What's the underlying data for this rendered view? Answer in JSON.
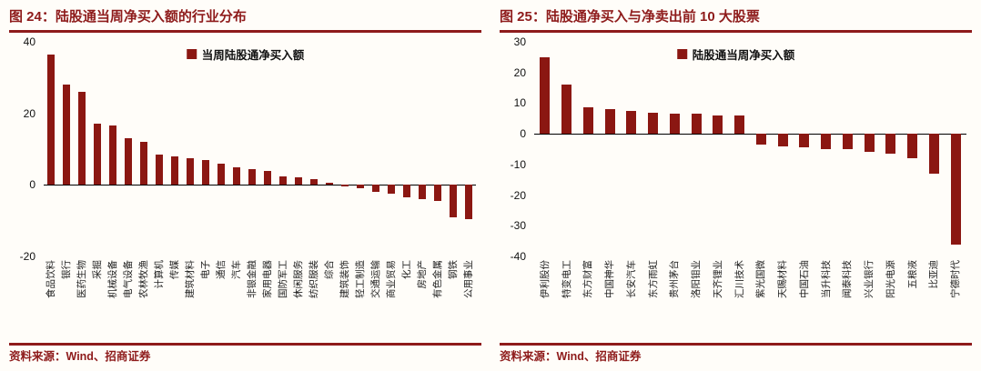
{
  "colors": {
    "accent": "#8E1B1B",
    "bar": "#8B1712",
    "background": "#FFFDF9",
    "zero_line": "#000000"
  },
  "chart_data": [
    {
      "type": "bar",
      "title": "图 24：陆股通当周净买入额的行业分布",
      "legend": [
        "当周陆股通净买入额"
      ],
      "legend_position": "top-center",
      "grid": false,
      "ylim": [
        -20,
        40
      ],
      "yticks": [
        40,
        20,
        0,
        -20
      ],
      "bar_color": "#8B1712",
      "categories": [
        "食品饮料",
        "银行",
        "医药生物",
        "采掘",
        "机械设备",
        "电气设备",
        "农林牧渔",
        "计算机",
        "传媒",
        "建筑材料",
        "电子",
        "通信",
        "汽车",
        "非银金融",
        "家用电器",
        "国防军工",
        "休闲服务",
        "纺织服装",
        "综合",
        "建筑装饰",
        "轻工制造",
        "交通运输",
        "商业贸易",
        "化工",
        "房地产",
        "有色金属",
        "钢铁",
        "公用事业"
      ],
      "values": [
        36.5,
        28,
        26,
        17,
        16.5,
        13,
        12,
        8.5,
        8,
        7.5,
        7,
        6,
        5,
        4.5,
        4,
        2.5,
        2,
        1.5,
        0.5,
        -0.5,
        -1,
        -2,
        -2.5,
        -3.5,
        -4,
        -4.5,
        -9,
        -9.5
      ],
      "source": "资料来源：Wind、招商证券"
    },
    {
      "type": "bar",
      "title": "图 25：陆股通净买入与净卖出前 10 大股票",
      "legend": [
        "陆股通当周净买入额"
      ],
      "legend_position": "top-center",
      "grid": false,
      "ylim": [
        -40,
        30
      ],
      "yticks": [
        30,
        20,
        10,
        0,
        -10,
        -20,
        -30,
        -40
      ],
      "bar_color": "#8B1712",
      "categories": [
        "伊利股份",
        "特变电工",
        "东方财富",
        "中国神华",
        "长安汽车",
        "东方雨虹",
        "贵州茅台",
        "洛阳钼业",
        "天齐锂业",
        "汇川技术",
        "紫光国微",
        "天赐材料",
        "中国石油",
        "当升科技",
        "闻泰科技",
        "兴业银行",
        "阳光电源",
        "五粮液",
        "比亚迪",
        "宁德时代"
      ],
      "values": [
        25,
        16,
        8.5,
        8,
        7.5,
        7,
        6.5,
        6.5,
        6,
        6,
        -3.5,
        -4,
        -4.5,
        -5,
        -5,
        -6,
        -6.5,
        -8,
        -13,
        -36
      ],
      "source": "资料来源：Wind、招商证券"
    }
  ]
}
